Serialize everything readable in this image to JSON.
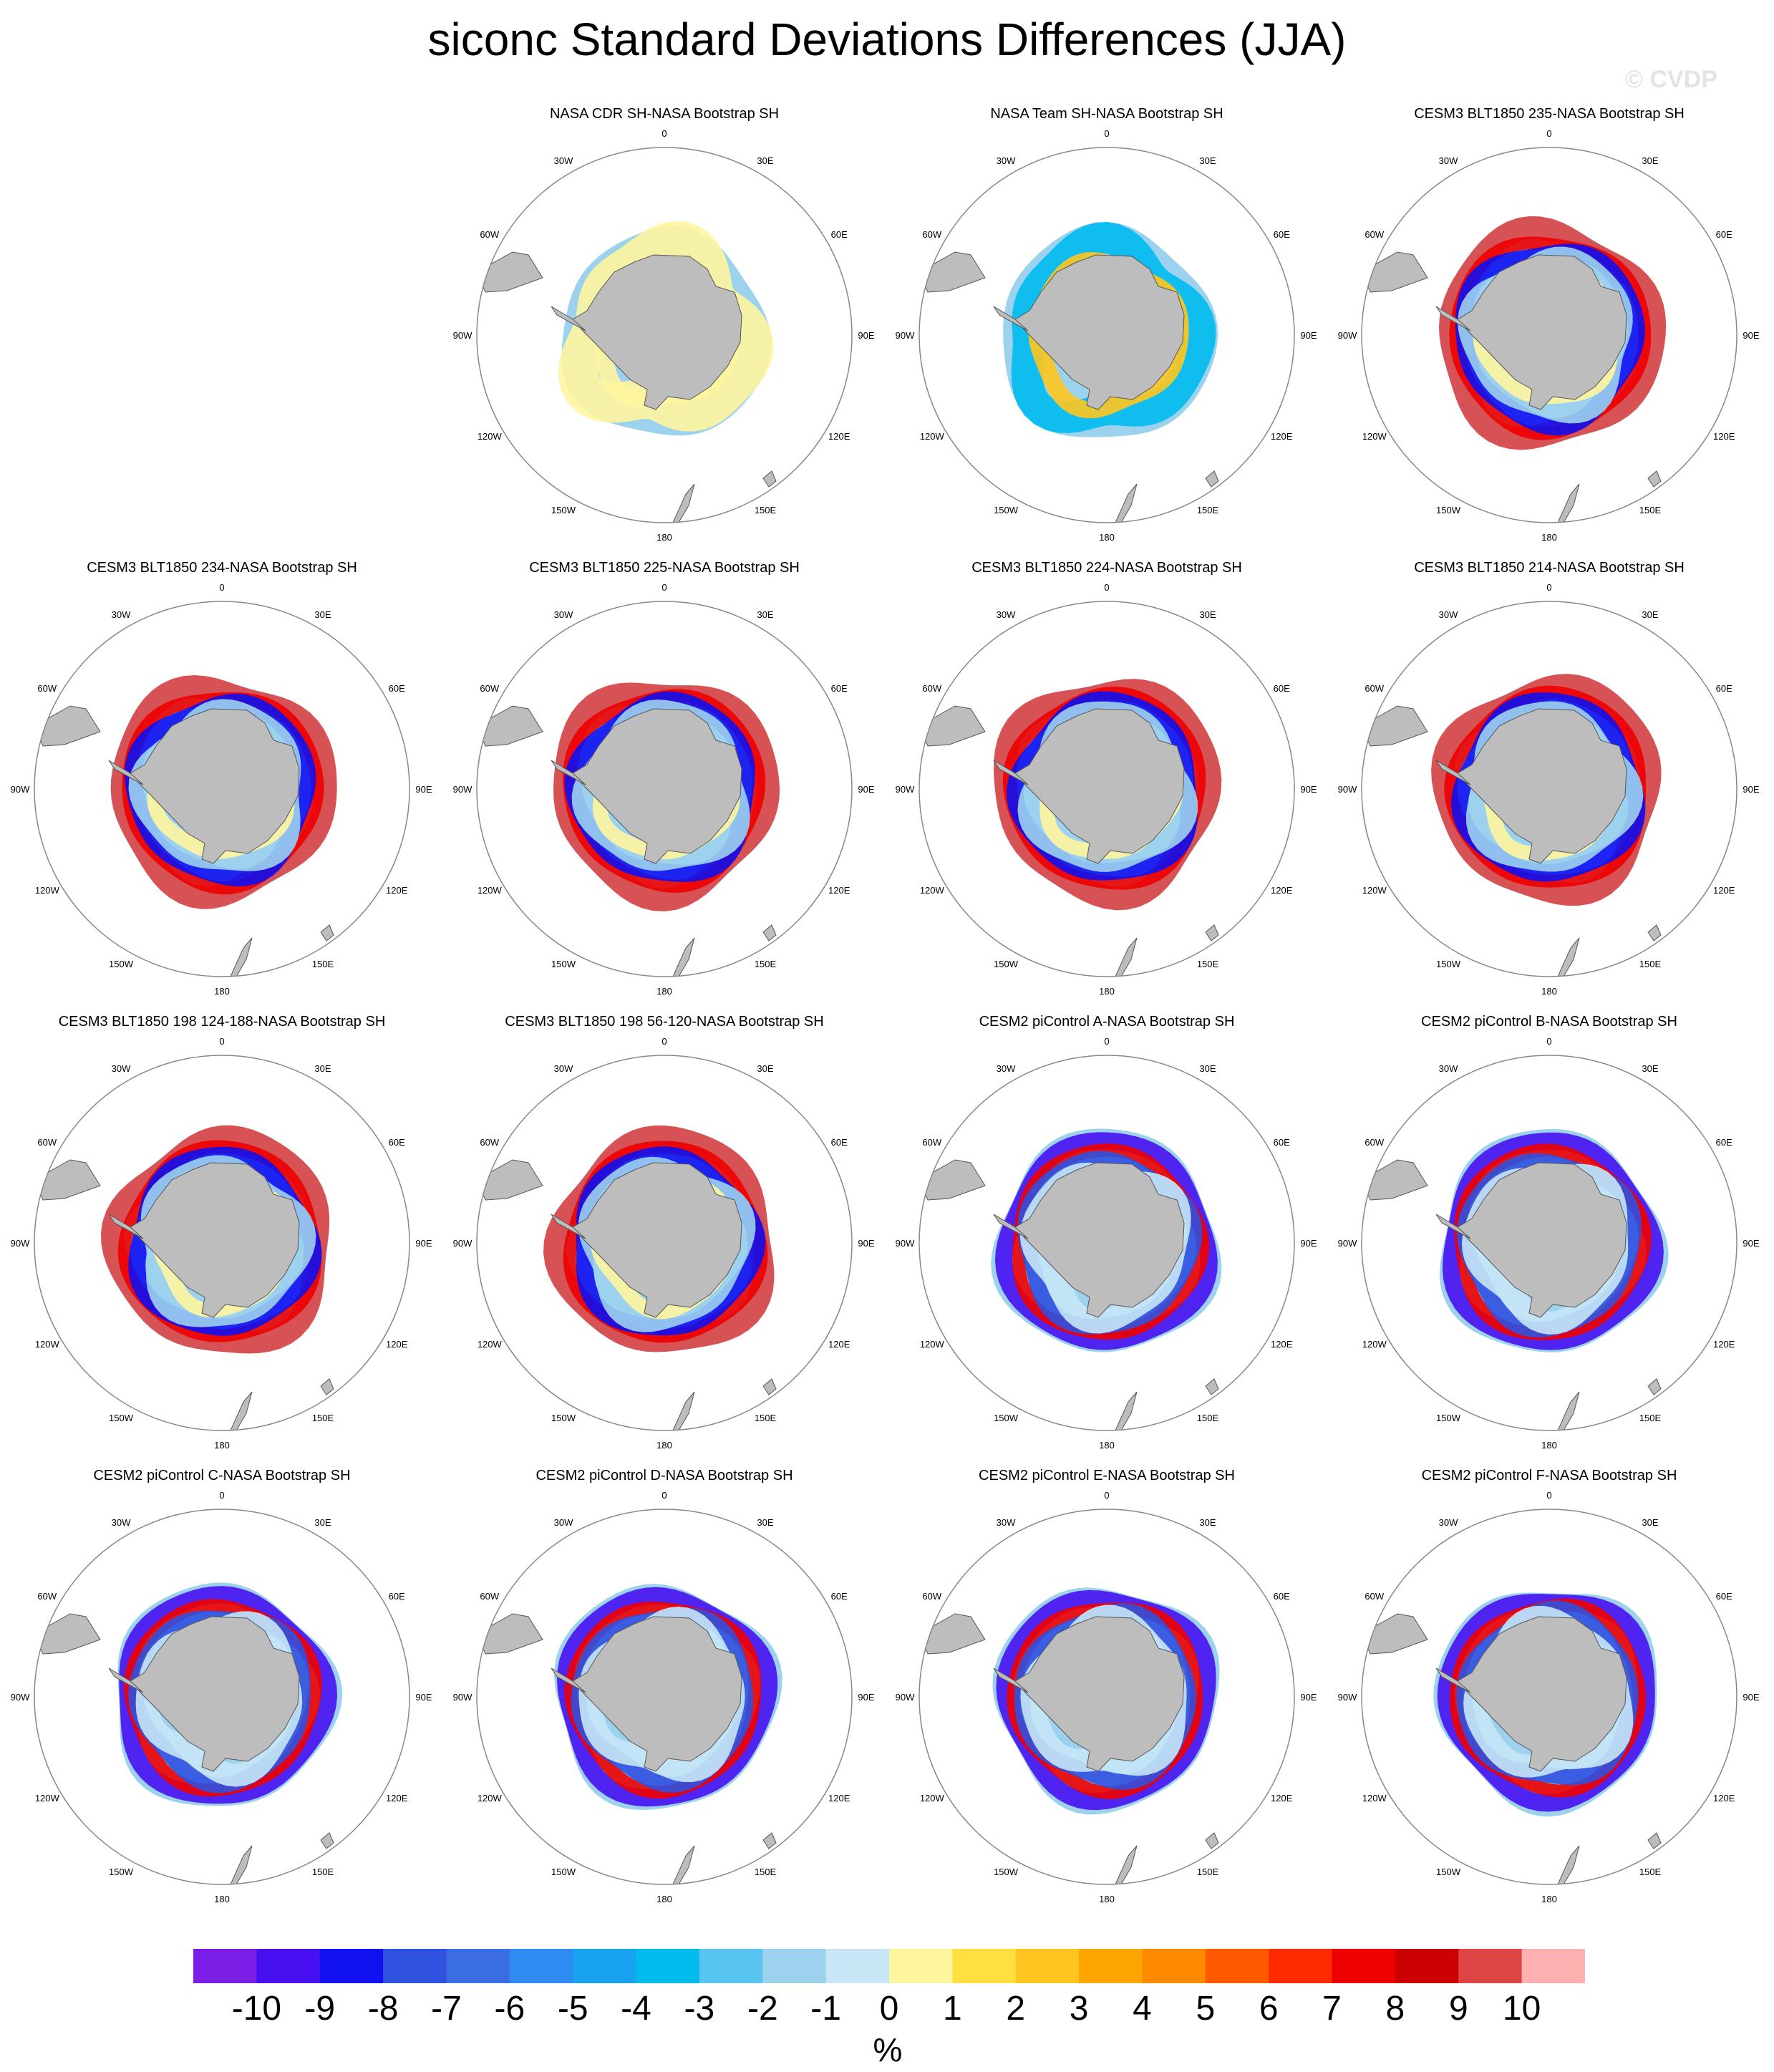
{
  "title": "siconc Standard Deviations Differences (JJA)",
  "watermark": "© CVDP",
  "colors": {
    "land": "#bdbdbd",
    "coast": "#555555",
    "circle": "#888888",
    "colorbar": [
      "#7c1fe6",
      "#4710f0",
      "#1010f0",
      "#3050e0",
      "#3a6ee0",
      "#2f8af2",
      "#18a2f0",
      "#00bbee",
      "#58c4f0",
      "#9dd2ee",
      "#c8e6f6",
      "#fff59e",
      "#ffe040",
      "#ffc51e",
      "#ffa500",
      "#ff8a00",
      "#ff5a00",
      "#ff2a00",
      "#ee0000",
      "#cc0000",
      "#dd4444",
      "#ffb0b0"
    ]
  },
  "longitude_labels": [
    "0",
    "30E",
    "60E",
    "90E",
    "120E",
    "150E",
    "180",
    "150W",
    "120W",
    "90W",
    "60W",
    "30W"
  ],
  "panels": [
    {
      "title": "NASA CDR SH-NASA Bootstrap SH",
      "pattern": "obs-cdr"
    },
    {
      "title": "NASA Team SH-NASA Bootstrap SH",
      "pattern": "obs-team"
    },
    {
      "title": "CESM3 BLT1850 235-NASA Bootstrap SH",
      "pattern": "cesm3"
    },
    {
      "title": "CESM3 BLT1850 234-NASA Bootstrap SH",
      "pattern": "cesm3"
    },
    {
      "title": "CESM3 BLT1850 225-NASA Bootstrap SH",
      "pattern": "cesm3"
    },
    {
      "title": "CESM3 BLT1850 224-NASA Bootstrap SH",
      "pattern": "cesm3"
    },
    {
      "title": "CESM3 BLT1850 214-NASA Bootstrap SH",
      "pattern": "cesm3"
    },
    {
      "title": "CESM3 BLT1850 198 124-188-NASA Bootstrap SH",
      "pattern": "cesm3"
    },
    {
      "title": "CESM3 BLT1850 198 56-120-NASA Bootstrap SH",
      "pattern": "cesm3"
    },
    {
      "title": "CESM2 piControl A-NASA Bootstrap SH",
      "pattern": "cesm2"
    },
    {
      "title": "CESM2 piControl B-NASA Bootstrap SH",
      "pattern": "cesm2"
    },
    {
      "title": "CESM2 piControl C-NASA Bootstrap SH",
      "pattern": "cesm2"
    },
    {
      "title": "CESM2 piControl D-NASA Bootstrap SH",
      "pattern": "cesm2"
    },
    {
      "title": "CESM2 piControl E-NASA Bootstrap SH",
      "pattern": "cesm2"
    },
    {
      "title": "CESM2 piControl F-NASA Bootstrap SH",
      "pattern": "cesm2"
    }
  ],
  "colorbar": {
    "ticks": [
      "-10",
      "-9",
      "-8",
      "-7",
      "-6",
      "-5",
      "-4",
      "-3",
      "-2",
      "-1",
      "0",
      "1",
      "2",
      "3",
      "4",
      "5",
      "6",
      "7",
      "8",
      "9",
      "10"
    ],
    "units": "%"
  }
}
